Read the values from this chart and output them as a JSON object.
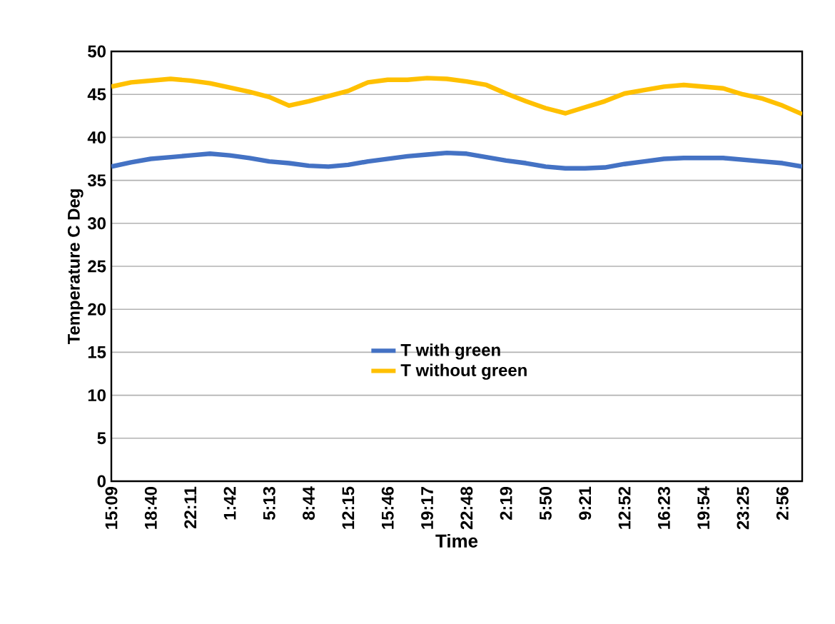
{
  "chart_data": {
    "type": "line",
    "xlabel": "Time",
    "ylabel": "Temperature C Deg",
    "categories": [
      "15:09",
      null,
      "18:40",
      null,
      "22:11",
      null,
      "1:42",
      null,
      "5:13",
      null,
      "8:44",
      null,
      "12:15",
      null,
      "15:46",
      null,
      "19:17",
      null,
      "22:48",
      null,
      "2:19",
      null,
      "5:50",
      null,
      "9:21",
      null,
      "12:52",
      null,
      "16:23",
      null,
      "19:54",
      null,
      "23:25",
      null,
      "2:56",
      null
    ],
    "ylim": [
      0,
      50
    ],
    "yticks": [
      0,
      5,
      10,
      15,
      20,
      25,
      30,
      35,
      40,
      45,
      50
    ],
    "grid": "y",
    "legend": "center",
    "marker": "none",
    "line_style": "solid",
    "series": [
      {
        "name": "T with green",
        "color": "#4472c4",
        "values": [
          36.6,
          37.1,
          37.5,
          37.7,
          37.9,
          38.1,
          37.9,
          37.6,
          37.2,
          37.0,
          36.7,
          36.6,
          36.8,
          37.2,
          37.5,
          37.8,
          38.0,
          38.2,
          38.1,
          37.7,
          37.3,
          37.0,
          36.6,
          36.4,
          36.4,
          36.5,
          36.9,
          37.2,
          37.5,
          37.6,
          37.6,
          37.6,
          37.4,
          37.2,
          37.0,
          36.6
        ]
      },
      {
        "name": "T without green",
        "color": "#ffc000",
        "values": [
          45.9,
          46.4,
          46.6,
          46.8,
          46.6,
          46.3,
          45.8,
          45.3,
          44.7,
          43.7,
          44.2,
          44.8,
          45.4,
          46.4,
          46.7,
          46.7,
          46.9,
          46.8,
          46.5,
          46.1,
          45.1,
          44.2,
          43.4,
          42.8,
          43.5,
          44.2,
          45.1,
          45.5,
          45.9,
          46.1,
          45.9,
          45.7,
          45.0,
          44.5,
          43.7,
          42.7
        ]
      }
    ]
  }
}
